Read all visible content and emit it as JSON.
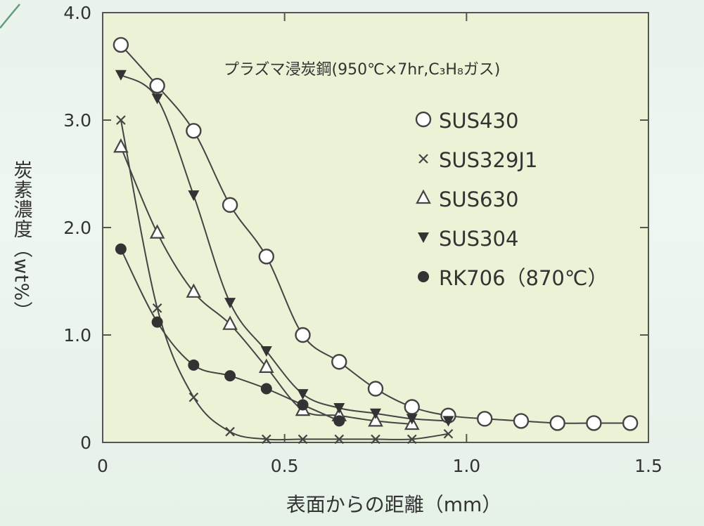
{
  "chart_data": {
    "type": "line",
    "title": "プラズマ浸炭鋼(950℃×7hr,C₃H₈ガス)",
    "xlabel": "表面からの距離（mm）",
    "ylabel": "炭素濃度（wt%）",
    "xlim": [
      0,
      1.5
    ],
    "ylim": [
      0,
      4.0
    ],
    "x_ticks": [
      "0",
      "0.5",
      "1.0",
      "1.5"
    ],
    "y_ticks": [
      "0",
      "1.0",
      "2.0",
      "3.0",
      "4.0"
    ],
    "grid": false,
    "legend_position": "top-right",
    "series": [
      {
        "name": "SUS430",
        "marker": "open-circle",
        "x": [
          0.05,
          0.15,
          0.25,
          0.35,
          0.45,
          0.55,
          0.65,
          0.75,
          0.85,
          0.95,
          1.05,
          1.15,
          1.25,
          1.35,
          1.45
        ],
        "y": [
          3.7,
          3.32,
          2.9,
          2.21,
          1.73,
          1.0,
          0.75,
          0.5,
          0.33,
          0.25,
          0.22,
          0.2,
          0.18,
          0.18,
          0.18
        ]
      },
      {
        "name": "SUS329J1",
        "marker": "cross",
        "x": [
          0.05,
          0.15,
          0.25,
          0.35,
          0.45,
          0.55,
          0.65,
          0.75,
          0.85,
          0.95
        ],
        "y": [
          3.0,
          1.25,
          0.42,
          0.1,
          0.03,
          0.03,
          0.03,
          0.03,
          0.03,
          0.08
        ]
      },
      {
        "name": "SUS630",
        "marker": "open-triangle",
        "x": [
          0.05,
          0.15,
          0.25,
          0.35,
          0.45,
          0.55,
          0.65,
          0.75,
          0.85
        ],
        "y": [
          2.75,
          1.95,
          1.4,
          1.1,
          0.7,
          0.3,
          0.25,
          0.2,
          0.17
        ]
      },
      {
        "name": "SUS304",
        "marker": "filled-triangle-down",
        "x": [
          0.05,
          0.15,
          0.25,
          0.35,
          0.45,
          0.55,
          0.65,
          0.75,
          0.85,
          0.95
        ],
        "y": [
          3.42,
          3.2,
          2.3,
          1.3,
          0.85,
          0.45,
          0.32,
          0.27,
          0.22,
          0.2
        ]
      },
      {
        "name": "RK706（870℃）",
        "marker": "filled-circle",
        "x": [
          0.05,
          0.15,
          0.25,
          0.35,
          0.45,
          0.55,
          0.65
        ],
        "y": [
          1.8,
          1.12,
          0.72,
          0.62,
          0.5,
          0.35,
          0.2
        ]
      }
    ]
  },
  "colors": {
    "plot_bg": "#ebf2d5",
    "ink": "#444444",
    "page_bg": "#e9f3ec"
  }
}
